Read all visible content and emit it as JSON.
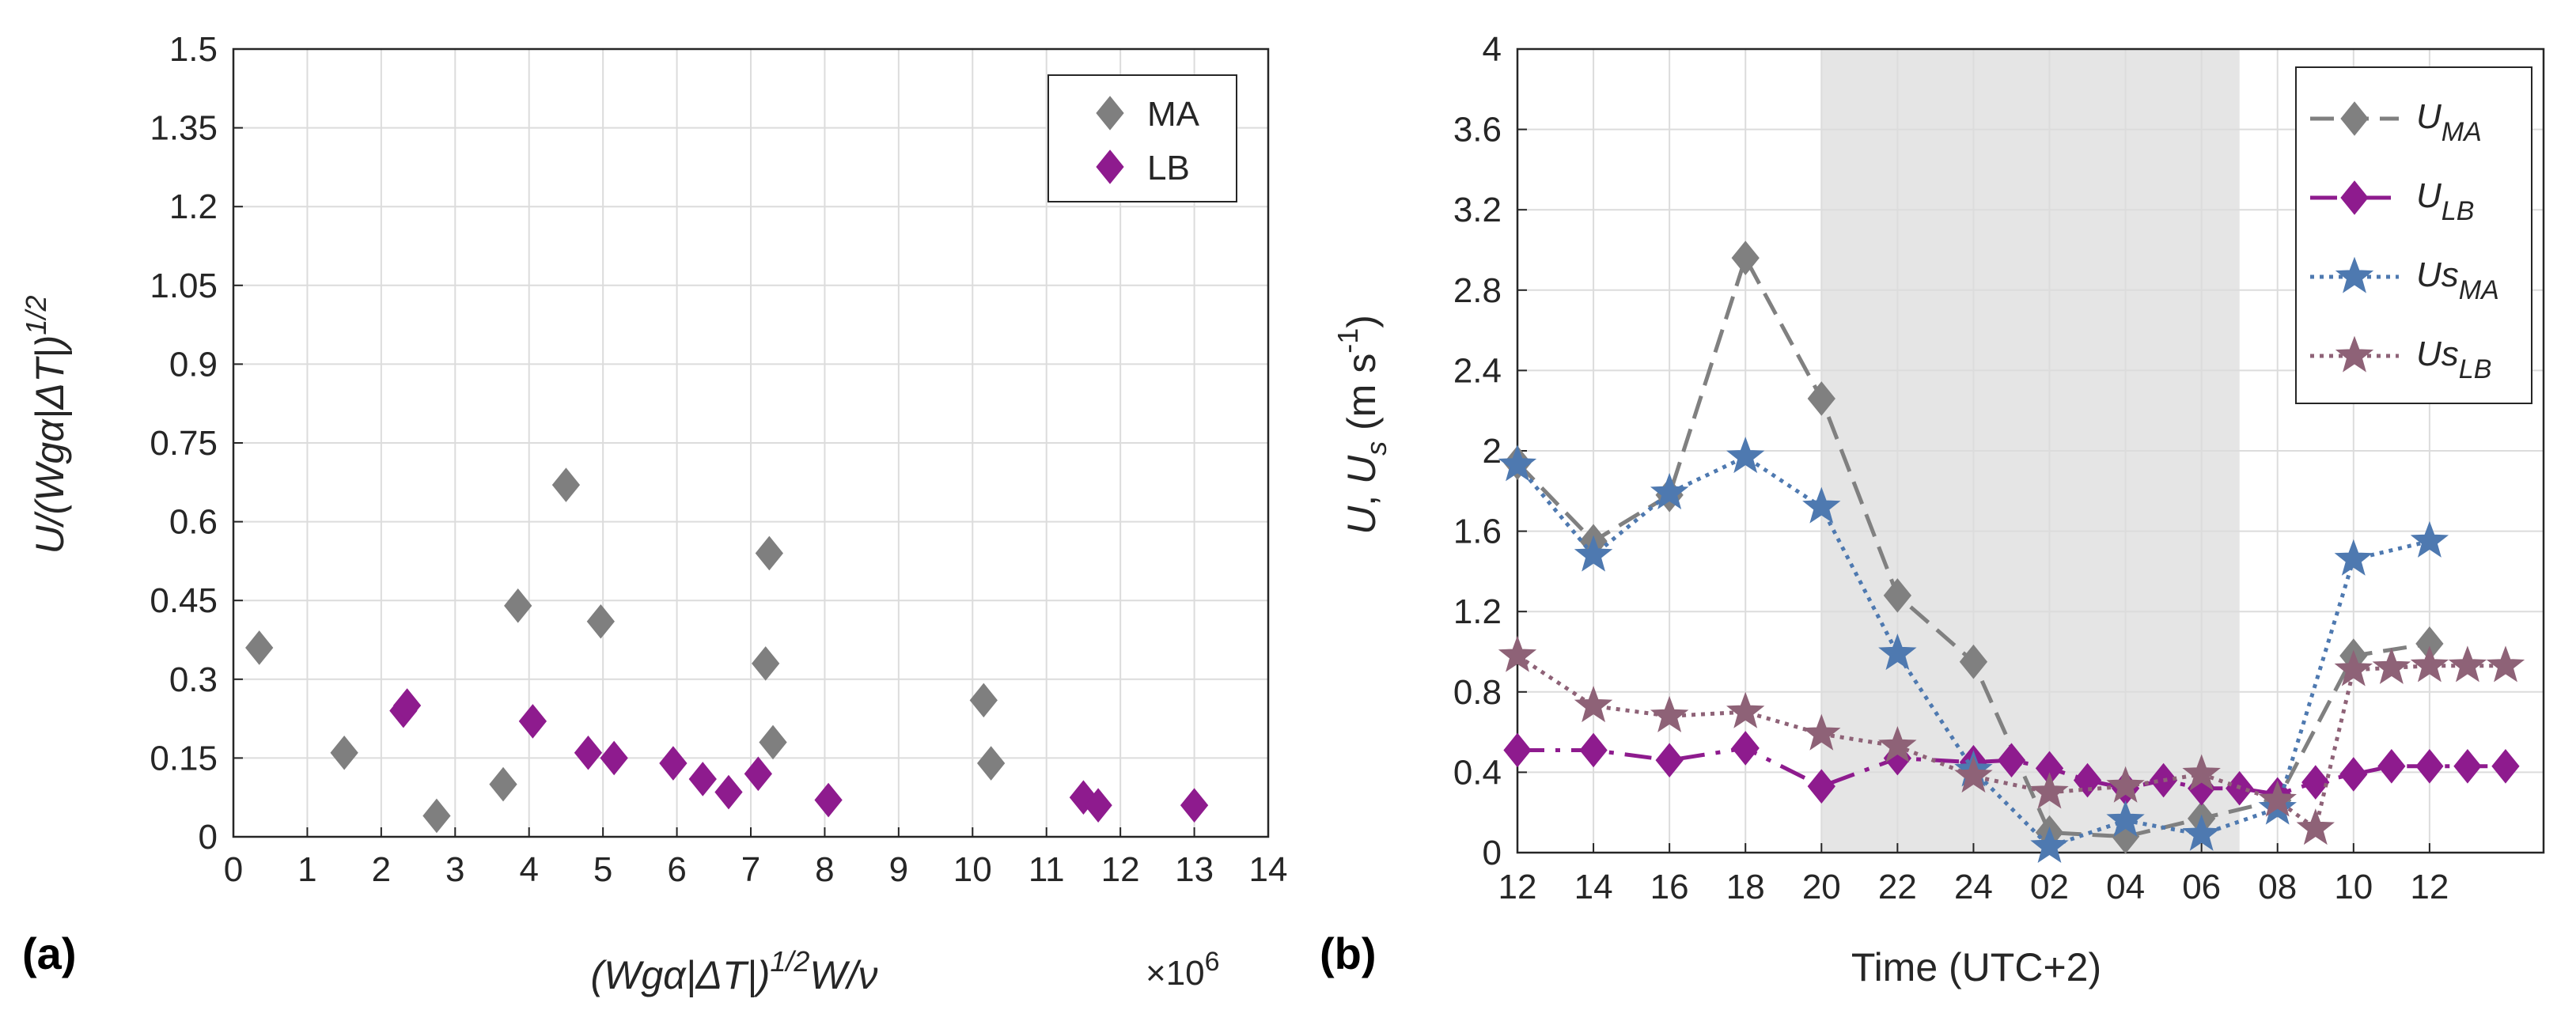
{
  "chart_data": [
    {
      "panel": "(a)",
      "panel_letter": "a",
      "type": "scatter",
      "xlabel": "(Wgα|ΔT|)^1/2 W/ν",
      "xlabel_main": "(Wgα|ΔT|)",
      "xlabel_sup": "1/2",
      "xlabel_tail": "W/ν",
      "x_multiplier": "×10",
      "x_multiplier_exp": "6",
      "ylabel": "U/(Wgα|ΔT|)^1/2",
      "ylabel_main": "U/(Wgα|ΔT|)",
      "ylabel_sup": "1/2",
      "xlim": [
        0,
        14
      ],
      "ylim": [
        0,
        1.5
      ],
      "x_ticks": [
        "0",
        "1",
        "2",
        "3",
        "4",
        "5",
        "6",
        "7",
        "8",
        "9",
        "10",
        "11",
        "12",
        "13",
        "14"
      ],
      "y_ticks": [
        "0",
        "0.15",
        "0.3",
        "0.45",
        "0.6",
        "0.75",
        "0.9",
        "1.05",
        "1.2",
        "1.35",
        "1.5"
      ],
      "grid": true,
      "legend_position": "top-right",
      "series": [
        {
          "name": "MA",
          "color": "#7f7f7f",
          "marker": "diamond",
          "points": [
            [
              0.35,
              0.36
            ],
            [
              1.5,
              0.16
            ],
            [
              2.75,
              0.04
            ],
            [
              3.65,
              0.1
            ],
            [
              3.85,
              0.44
            ],
            [
              4.5,
              0.67
            ],
            [
              4.97,
              0.41
            ],
            [
              7.2,
              0.33
            ],
            [
              7.25,
              0.54
            ],
            [
              7.3,
              0.18
            ],
            [
              10.15,
              0.26
            ],
            [
              10.25,
              0.14
            ]
          ]
        },
        {
          "name": "LB",
          "color": "#8e1b8e",
          "marker": "diamond",
          "points": [
            [
              2.3,
              0.24
            ],
            [
              2.35,
              0.25
            ],
            [
              4.05,
              0.22
            ],
            [
              4.8,
              0.16
            ],
            [
              5.15,
              0.15
            ],
            [
              5.95,
              0.14
            ],
            [
              6.35,
              0.11
            ],
            [
              6.7,
              0.085
            ],
            [
              7.1,
              0.12
            ],
            [
              8.05,
              0.07
            ],
            [
              11.5,
              0.075
            ],
            [
              11.7,
              0.06
            ],
            [
              13.0,
              0.06
            ]
          ]
        }
      ]
    },
    {
      "panel": "(b)",
      "panel_letter": "b",
      "type": "line",
      "xlabel": "Time (UTC+2)",
      "ylabel": "U, U_s (m s^-1)",
      "ylabel_u": "U",
      "ylabel_sep": ", ",
      "ylabel_us": "U",
      "ylabel_us_sub": "s",
      "ylabel_units_open": " (m s",
      "ylabel_units_exp": "-1",
      "ylabel_units_close": ")",
      "xlim": [
        0,
        13.5
      ],
      "ylim": [
        0,
        4
      ],
      "x_ticks": [
        "12",
        "14",
        "16",
        "18",
        "20",
        "22",
        "24",
        "02",
        "04",
        "06",
        "08",
        "10",
        "12"
      ],
      "y_ticks": [
        "0",
        "0.4",
        "0.8",
        "1.2",
        "1.6",
        "2",
        "2.4",
        "2.8",
        "3.2",
        "3.6",
        "4"
      ],
      "shaded_region": {
        "x_start": 4,
        "x_end": 9.5,
        "color": "#e5e5e5"
      },
      "grid": true,
      "legend_position": "top-right",
      "series": [
        {
          "name": "U_MA",
          "label_main": "U",
          "label_sub": "MA",
          "color": "#808080",
          "marker": "diamond",
          "dash": "long-dash",
          "x": [
            0,
            1,
            2,
            3,
            4,
            5,
            6,
            7,
            8,
            9,
            10,
            11,
            12
          ],
          "y": [
            1.94,
            1.55,
            1.78,
            2.96,
            2.26,
            1.28,
            0.95,
            0.1,
            0.08,
            0.17,
            0.26,
            0.98,
            1.04
          ]
        },
        {
          "name": "U_LB",
          "label_main": "U",
          "label_sub": "LB",
          "color": "#8e1b8e",
          "marker": "diamond",
          "dash": "dash-dot",
          "x": [
            0,
            1,
            2,
            3,
            4,
            5,
            6,
            6.5,
            7,
            7.5,
            8,
            8.5,
            9,
            9.5,
            10,
            10.5,
            11,
            11.5,
            12,
            12.5,
            13
          ],
          "y": [
            0.51,
            0.51,
            0.46,
            0.52,
            0.33,
            0.47,
            0.45,
            0.46,
            0.42,
            0.36,
            0.32,
            0.36,
            0.32,
            0.32,
            0.29,
            0.35,
            0.39,
            0.43,
            0.43,
            0.43,
            0.43
          ]
        },
        {
          "name": "Us_MA",
          "label_main": "Us",
          "label_sub": "MA",
          "color": "#4e79b0",
          "marker": "star",
          "dash": "dotted",
          "x": [
            0,
            1,
            2,
            3,
            4,
            5,
            6,
            7,
            8,
            9,
            10,
            11,
            12
          ],
          "y": [
            1.93,
            1.48,
            1.79,
            1.97,
            1.72,
            0.99,
            0.41,
            0.03,
            0.16,
            0.09,
            0.22,
            1.46,
            1.55
          ]
        },
        {
          "name": "Us_LB",
          "label_main": "Us",
          "label_sub": "LB",
          "color": "#8e6277",
          "marker": "star",
          "dash": "dotted",
          "x": [
            0,
            1,
            2,
            3,
            4,
            5,
            6,
            7,
            8,
            9,
            10,
            10.5,
            11,
            11.5,
            12,
            12.5,
            13
          ],
          "y": [
            0.98,
            0.73,
            0.68,
            0.7,
            0.59,
            0.53,
            0.38,
            0.3,
            0.33,
            0.39,
            0.26,
            0.12,
            0.91,
            0.92,
            0.93,
            0.93,
            0.93
          ]
        }
      ]
    }
  ]
}
